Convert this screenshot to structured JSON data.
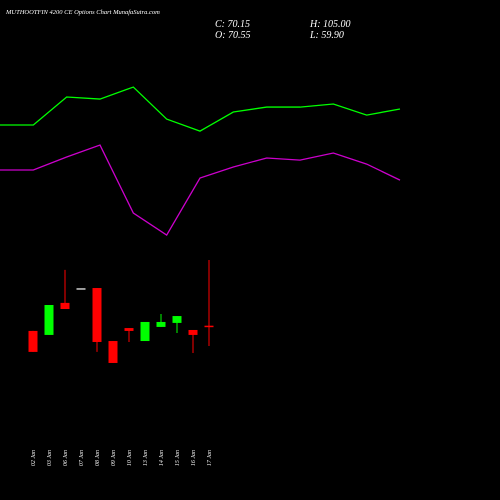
{
  "title": "MUTHOOTFIN 4200 CE Options Chart MunafaSutra.com",
  "info": {
    "close": "C: 70.15",
    "high": "H: 105.00",
    "open": "O: 70.55",
    "low": "L: 59.90"
  },
  "chart_data": [
    {
      "type": "line",
      "ylim": [
        0,
        240
      ],
      "series": [
        {
          "color": "#00ff00",
          "values": [
            175.8,
            175.8,
            190.5,
            189.4,
            195.7,
            178.9,
            172.6,
            182.6,
            185.2,
            185.2,
            186.8,
            181.0,
            184.2
          ]
        },
        {
          "color": "#cc00cc",
          "values": [
            152.2,
            152.2,
            159.0,
            165.3,
            129.6,
            118.1,
            148.0,
            153.8,
            158.5,
            157.4,
            161.1,
            155.3,
            146.9
          ]
        }
      ]
    },
    {
      "type": "candlestick",
      "ylim": [
        0,
        240
      ],
      "up_color": "#00ff00",
      "down_color": "#ff0000",
      "flat_color": "#cccccc",
      "categories": [
        "02 Jan",
        "03 Jan",
        "06 Jan",
        "07 Jan",
        "08 Jan",
        "09 Jan",
        "10 Jan",
        "13 Jan",
        "14 Jan",
        "15 Jan",
        "16 Jan",
        "17 Jan"
      ],
      "open": [
        67.8,
        65.7,
        82.5,
        90.2,
        90.3,
        62.5,
        69.3,
        62.5,
        69.9,
        72.0,
        68.3,
        70.55
      ],
      "high": [
        67.8,
        81.4,
        99.8,
        90.2,
        90.3,
        62.5,
        69.3,
        72.5,
        76.7,
        75.6,
        68.3,
        105.0
      ],
      "low": [
        56.8,
        65.7,
        79.3,
        90.2,
        56.8,
        51.0,
        62.0,
        62.5,
        69.9,
        66.7,
        56.2,
        59.9
      ],
      "close": [
        56.8,
        81.4,
        79.3,
        90.2,
        62.0,
        51.0,
        67.8,
        72.5,
        72.5,
        75.6,
        65.7,
        70.15
      ]
    }
  ]
}
